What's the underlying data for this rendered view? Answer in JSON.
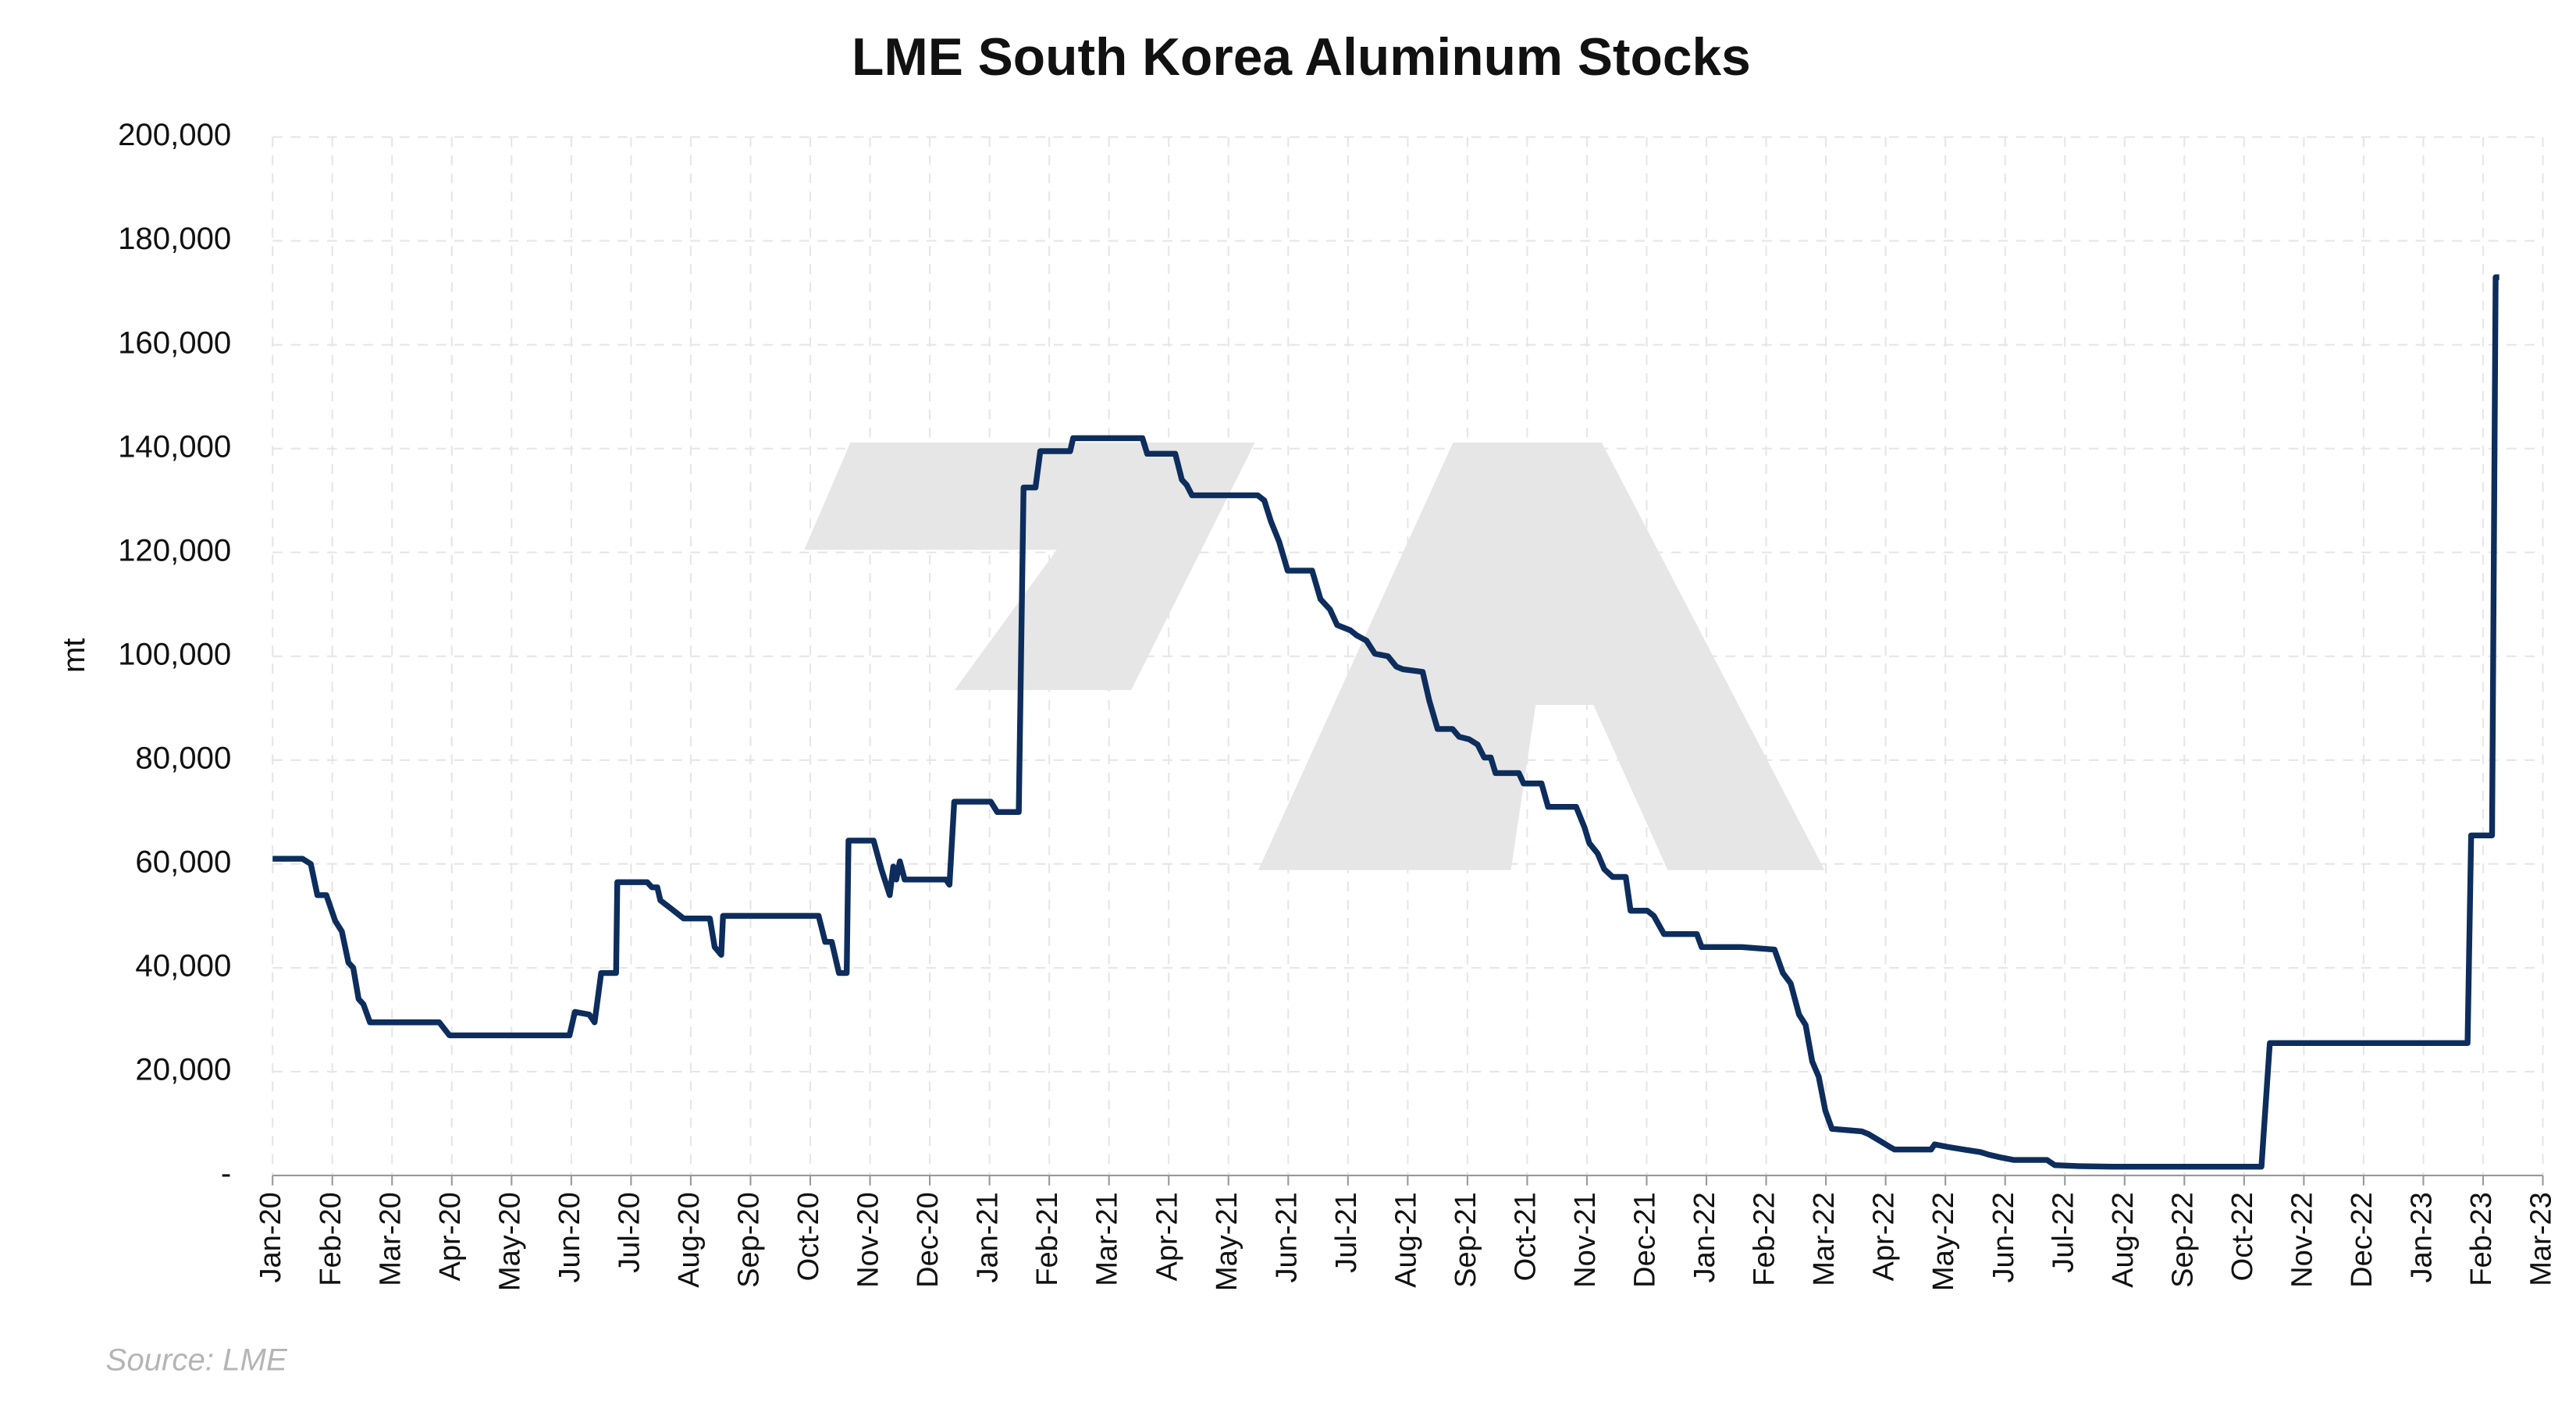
{
  "chart_data": {
    "type": "line",
    "title": "LME South Korea Aluminum Stocks",
    "ylabel": "mt",
    "source": "Source: LME",
    "color": "#0d2d5c",
    "grid": true,
    "xlim": [
      0,
      38
    ],
    "ylim": [
      0,
      200000
    ],
    "yticks": [
      {
        "value": 0,
        "label": "-"
      },
      {
        "value": 20000,
        "label": "20,000"
      },
      {
        "value": 40000,
        "label": "40,000"
      },
      {
        "value": 60000,
        "label": "60,000"
      },
      {
        "value": 80000,
        "label": "80,000"
      },
      {
        "value": 100000,
        "label": "100,000"
      },
      {
        "value": 120000,
        "label": "120,000"
      },
      {
        "value": 140000,
        "label": "140,000"
      },
      {
        "value": 160000,
        "label": "160,000"
      },
      {
        "value": 180000,
        "label": "180,000"
      },
      {
        "value": 200000,
        "label": "200,000"
      }
    ],
    "xticks": [
      {
        "value": 0,
        "label": "Jan-20"
      },
      {
        "value": 1,
        "label": "Feb-20"
      },
      {
        "value": 2,
        "label": "Mar-20"
      },
      {
        "value": 3,
        "label": "Apr-20"
      },
      {
        "value": 4,
        "label": "May-20"
      },
      {
        "value": 5,
        "label": "Jun-20"
      },
      {
        "value": 6,
        "label": "Jul-20"
      },
      {
        "value": 7,
        "label": "Aug-20"
      },
      {
        "value": 8,
        "label": "Sep-20"
      },
      {
        "value": 9,
        "label": "Oct-20"
      },
      {
        "value": 10,
        "label": "Nov-20"
      },
      {
        "value": 11,
        "label": "Dec-20"
      },
      {
        "value": 12,
        "label": "Jan-21"
      },
      {
        "value": 13,
        "label": "Feb-21"
      },
      {
        "value": 14,
        "label": "Mar-21"
      },
      {
        "value": 15,
        "label": "Apr-21"
      },
      {
        "value": 16,
        "label": "May-21"
      },
      {
        "value": 17,
        "label": "Jun-21"
      },
      {
        "value": 18,
        "label": "Jul-21"
      },
      {
        "value": 19,
        "label": "Aug-21"
      },
      {
        "value": 20,
        "label": "Sep-21"
      },
      {
        "value": 21,
        "label": "Oct-21"
      },
      {
        "value": 22,
        "label": "Nov-21"
      },
      {
        "value": 23,
        "label": "Dec-21"
      },
      {
        "value": 24,
        "label": "Jan-22"
      },
      {
        "value": 25,
        "label": "Feb-22"
      },
      {
        "value": 26,
        "label": "Mar-22"
      },
      {
        "value": 27,
        "label": "Apr-22"
      },
      {
        "value": 28,
        "label": "May-22"
      },
      {
        "value": 29,
        "label": "Jun-22"
      },
      {
        "value": 30,
        "label": "Jul-22"
      },
      {
        "value": 31,
        "label": "Aug-22"
      },
      {
        "value": 32,
        "label": "Sep-22"
      },
      {
        "value": 33,
        "label": "Oct-22"
      },
      {
        "value": 34,
        "label": "Nov-22"
      },
      {
        "value": 35,
        "label": "Dec-22"
      },
      {
        "value": 36,
        "label": "Jan-23"
      },
      {
        "value": 37,
        "label": "Feb-23"
      },
      {
        "value": 38,
        "label": "Mar-23"
      }
    ],
    "x": [
      0,
      0.5,
      0.64,
      0.75,
      0.9,
      1.05,
      1.16,
      1.27,
      1.35,
      1.44,
      1.52,
      1.63,
      2.79,
      2.96,
      4.97,
      5.06,
      5.3,
      5.39,
      5.5,
      5.75,
      5.77,
      6.27,
      6.35,
      6.44,
      6.49,
      6.66,
      6.77,
      6.88,
      7.32,
      7.4,
      7.51,
      7.54,
      9.14,
      9.25,
      9.36,
      9.48,
      9.61,
      9.64,
      10.06,
      10.19,
      10.33,
      10.39,
      10.44,
      10.5,
      10.58,
      11.27,
      11.33,
      11.41,
      12.02,
      12.13,
      12.49,
      12.57,
      12.77,
      12.85,
      13.35,
      13.4,
      14.56,
      14.64,
      15.11,
      15.22,
      15.3,
      15.39,
      16.49,
      16.6,
      16.71,
      16.85,
      16.99,
      17.4,
      17.54,
      17.7,
      17.82,
      18.04,
      18.15,
      18.31,
      18.45,
      18.67,
      18.81,
      18.92,
      19.25,
      19.36,
      19.5,
      19.75,
      19.86,
      20.03,
      20.17,
      20.28,
      20.39,
      20.47,
      20.86,
      20.94,
      21.24,
      21.35,
      21.82,
      21.96,
      22.04,
      22.18,
      22.29,
      22.43,
      22.65,
      22.73,
      23.01,
      23.12,
      23.29,
      23.84,
      23.92,
      24.59,
      25.14,
      25.28,
      25.41,
      25.55,
      25.66,
      25.77,
      25.88,
      25.99,
      26.1,
      26.6,
      26.71,
      26.93,
      27.07,
      27.15,
      27.76,
      27.82,
      28.04,
      28.31,
      28.59,
      28.73,
      28.92,
      29.14,
      29.7,
      29.83,
      30.25,
      30.8,
      33.29,
      33.43,
      36.74,
      36.8,
      37.15,
      37.21,
      37.27
    ],
    "values": [
      61000,
      61000,
      60000,
      54000,
      54000,
      49000,
      47000,
      41000,
      40000,
      34000,
      33000,
      29500,
      29500,
      27000,
      27000,
      31500,
      31000,
      29500,
      39000,
      39000,
      56500,
      56500,
      55500,
      55500,
      53000,
      51500,
      50500,
      49500,
      49500,
      44000,
      42500,
      50000,
      50000,
      45000,
      45000,
      39000,
      39000,
      64500,
      64500,
      59000,
      54000,
      59500,
      57000,
      60500,
      57000,
      57000,
      56000,
      72000,
      72000,
      70000,
      70000,
      132500,
      132500,
      139500,
      139500,
      142000,
      142000,
      139000,
      139000,
      134000,
      133000,
      131000,
      131000,
      130000,
      126000,
      122000,
      116500,
      116500,
      111000,
      109000,
      106000,
      105000,
      104000,
      103000,
      100500,
      100000,
      98000,
      97500,
      97000,
      91500,
      86000,
      86000,
      84500,
      84000,
      83000,
      80500,
      80500,
      77500,
      77500,
      75500,
      75500,
      71000,
      71000,
      67000,
      64000,
      62000,
      59000,
      57500,
      57500,
      51000,
      51000,
      50000,
      46500,
      46500,
      44000,
      44000,
      43500,
      39000,
      37000,
      31000,
      29000,
      22000,
      19000,
      12500,
      9000,
      8500,
      8000,
      6500,
      5500,
      5000,
      5000,
      6000,
      5500,
      5000,
      4500,
      4000,
      3500,
      3000,
      3000,
      2000,
      1800,
      1700,
      1700,
      25500,
      25500,
      65500,
      65500,
      173000,
      173000
    ]
  }
}
